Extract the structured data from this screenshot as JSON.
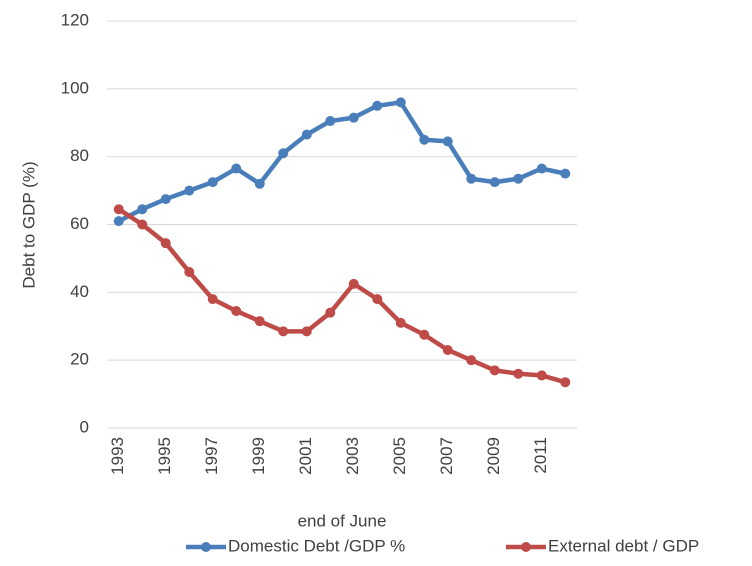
{
  "chart_data": {
    "type": "line",
    "xlabel": "end of June",
    "ylabel": "Debt to GDP (%)",
    "categories": [
      "1993",
      null,
      "1995",
      null,
      "1997",
      null,
      "1999",
      null,
      "2001",
      null,
      "2003",
      null,
      "2005",
      null,
      "2007",
      null,
      "2009",
      null,
      "2011",
      null
    ],
    "series": [
      {
        "name": "Domestic Debt /GDP %",
        "color": "#4a7ebb",
        "values": [
          61,
          64.5,
          67.5,
          70,
          72.5,
          76.5,
          72,
          81,
          86.5,
          90.5,
          91.5,
          95,
          96,
          85,
          84.5,
          73.5,
          72.5,
          73.5,
          76.5,
          75
        ]
      },
      {
        "name": "External debt / GDP",
        "color": "#be4b48",
        "values": [
          64.5,
          60,
          54.5,
          46,
          38,
          34.5,
          31.5,
          28.5,
          28.5,
          34,
          42.5,
          38,
          31,
          27.5,
          23,
          20,
          17,
          16,
          15.5,
          13.5
        ]
      }
    ],
    "ylim": [
      0,
      120
    ],
    "yticks": [
      0,
      20,
      40,
      60,
      80,
      100,
      120
    ],
    "grid": true,
    "legend": "bottom"
  }
}
